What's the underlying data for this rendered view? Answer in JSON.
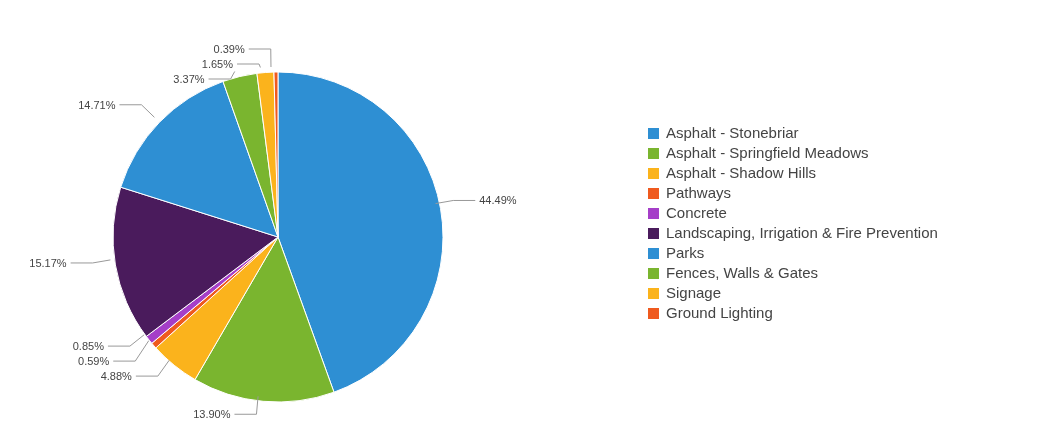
{
  "chart_data": {
    "type": "pie",
    "categories": [
      "Asphalt - Stonebriar",
      "Asphalt - Springfield Meadows",
      "Asphalt - Shadow Hills",
      "Pathways",
      "Concrete",
      "Landscaping, Irrigation & Fire Prevention",
      "Parks",
      "Fences, Walls & Gates",
      "Signage",
      "Ground Lighting"
    ],
    "values": [
      44.49,
      13.9,
      4.88,
      0.59,
      0.85,
      15.17,
      14.71,
      3.37,
      1.65,
      0.39
    ],
    "value_labels": [
      "44.49%",
      "13.90%",
      "4.88%",
      "0.59%",
      "0.85%",
      "15.17%",
      "14.71%",
      "3.37%",
      "1.65%",
      "0.39%"
    ],
    "colors": [
      "#2e8fd3",
      "#7ab52f",
      "#fbb31c",
      "#ef5a1e",
      "#a53ec8",
      "#4a1b5c",
      "#2e8fd3",
      "#7ab52f",
      "#fbb31c",
      "#ef5a1e"
    ],
    "legend": "right"
  }
}
